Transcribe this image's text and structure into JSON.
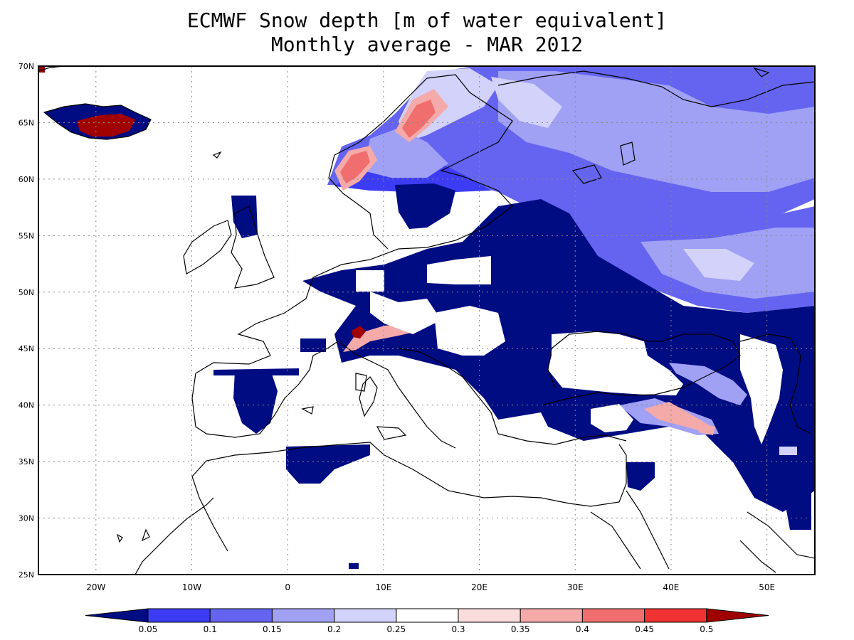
{
  "header": {
    "title_line1": "ECMWF Snow depth [m of water equivalent]",
    "title_line2": "Monthly average - MAR 2012"
  },
  "map": {
    "lon_range": [
      -26,
      55
    ],
    "lat_range": [
      25,
      70
    ],
    "lat_labels": [
      "25N",
      "30N",
      "35N",
      "40N",
      "45N",
      "50N",
      "55N",
      "60N",
      "65N",
      "70N"
    ],
    "lat_values": [
      25,
      30,
      35,
      40,
      45,
      50,
      55,
      60,
      65,
      70
    ],
    "lon_labels": [
      "20W",
      "10W",
      "0",
      "10E",
      "20E",
      "30E",
      "40E",
      "50E"
    ],
    "lon_values": [
      -20,
      -10,
      0,
      10,
      20,
      30,
      40,
      50
    ],
    "gridlines": "dotted"
  },
  "colorbar": {
    "labels": [
      "0.05",
      "0.1",
      "0.15",
      "0.2",
      "0.25",
      "0.3",
      "0.35",
      "0.4",
      "0.45",
      "0.5"
    ],
    "colors": [
      "#000c82",
      "#3c3cf5",
      "#6464f0",
      "#a0a0f5",
      "#d2d2fa",
      "#ffffff",
      "#fadcdc",
      "#f5aaaa",
      "#f06e6e",
      "#f03232",
      "#a00000"
    ]
  }
}
